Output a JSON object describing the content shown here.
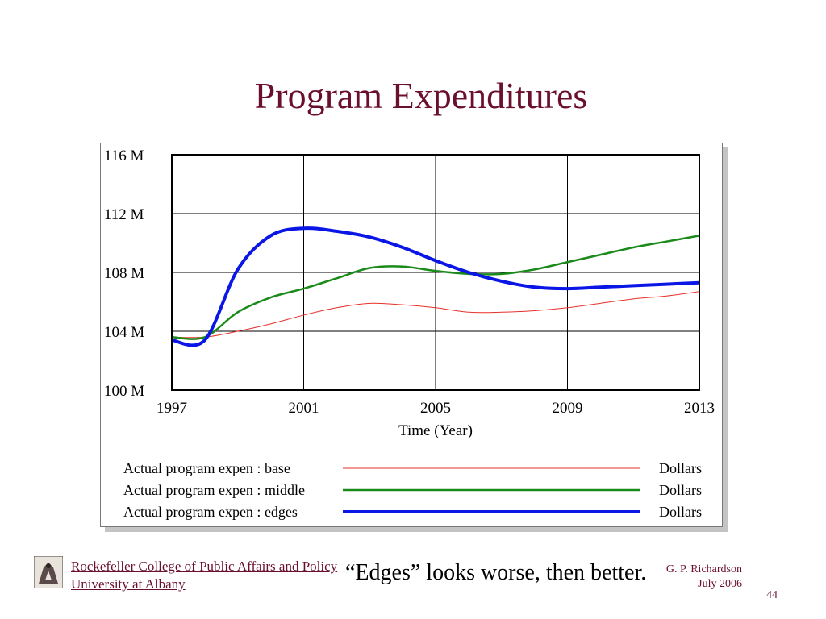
{
  "slide": {
    "title": "Program Expenditures",
    "caption": "“Edges” looks worse, then better.",
    "org_line1": "Rockefeller College of Public Affairs and Policy",
    "org_line2": "University at Albany",
    "author": "G. P. Richardson",
    "date": "July 2006",
    "page_number": "44"
  },
  "chart_data": {
    "type": "line",
    "title": "",
    "xlabel": "Time (Year)",
    "ylabel": "",
    "xlim": [
      1997,
      2013
    ],
    "ylim": [
      100,
      116
    ],
    "x_ticks": [
      1997,
      2001,
      2005,
      2009,
      2013
    ],
    "y_ticks": [
      100,
      104,
      108,
      112,
      116
    ],
    "x_tick_labels": [
      "1997",
      "2001",
      "2005",
      "2009",
      "2013"
    ],
    "y_tick_labels": [
      "100 M",
      "104 M",
      "108 M",
      "112 M",
      "116 M"
    ],
    "grid": true,
    "legend_position": "bottom",
    "x": [
      1997,
      1998,
      1999,
      2000,
      2001,
      2002,
      2003,
      2004,
      2005,
      2006,
      2007,
      2008,
      2009,
      2010,
      2011,
      2012,
      2013
    ],
    "series": [
      {
        "name": "Actual program expen : base",
        "unit": "Dollars",
        "color": "#e8302a",
        "width": 1,
        "values": [
          103.6,
          103.6,
          104.0,
          104.5,
          105.1,
          105.6,
          105.9,
          105.8,
          105.6,
          105.3,
          105.3,
          105.4,
          105.6,
          105.9,
          106.2,
          106.4,
          106.7
        ]
      },
      {
        "name": "Actual program expen : middle",
        "unit": "Dollars",
        "color": "#1a8a1a",
        "width": 2.5,
        "values": [
          103.6,
          103.6,
          105.3,
          106.3,
          106.9,
          107.6,
          108.3,
          108.4,
          108.1,
          107.9,
          107.9,
          108.2,
          108.7,
          109.2,
          109.7,
          110.1,
          110.5
        ]
      },
      {
        "name": "Actual program expen : edges",
        "unit": "Dollars",
        "color": "#0a16e6",
        "width": 4,
        "values": [
          103.4,
          103.4,
          108.2,
          110.5,
          111.0,
          110.8,
          110.4,
          109.7,
          108.8,
          108.0,
          107.4,
          107.0,
          106.9,
          107.0,
          107.1,
          107.2,
          107.3
        ]
      }
    ]
  },
  "icons": {
    "logo": "university-seal-icon"
  }
}
